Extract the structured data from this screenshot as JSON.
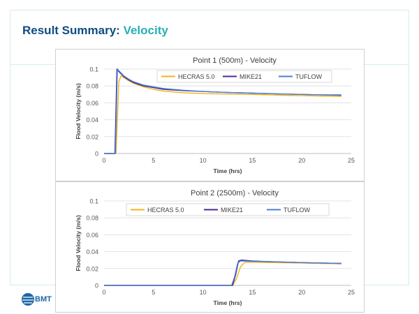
{
  "page": {
    "title_main": "Result Summary:",
    "title_accent": "Velocity",
    "logo_text": "BMT"
  },
  "colors": {
    "title": "#0f4c81",
    "accent": "#27b0b5",
    "hecras": "#f2b418",
    "mike21": "#4b2a8f",
    "tuflow": "#4a7fd4"
  },
  "chart_data": [
    {
      "type": "line",
      "title": "Point 1 (500m) - Velocity",
      "xlabel": "Time (hrs)",
      "ylabel": "Flood Velocity (m/s)",
      "xlim": [
        0,
        25
      ],
      "ylim": [
        0,
        0.1
      ],
      "x_ticks": [
        "0",
        "5",
        "10",
        "15",
        "20",
        "25"
      ],
      "y_ticks": [
        "0",
        "0.02",
        "0.04",
        "0.06",
        "0.08",
        "0.1"
      ],
      "legend": [
        "HECRAS 5.0",
        "MIKE21",
        "TUFLOW"
      ],
      "grid": true,
      "series": [
        {
          "name": "HECRAS 5.0",
          "color": "#f2b418",
          "x": [
            0,
            1.2,
            1.35,
            1.5,
            1.7,
            2,
            2.5,
            3,
            4,
            5,
            6,
            8,
            10,
            12,
            15,
            18,
            20,
            22,
            24
          ],
          "y": [
            0,
            0,
            0.04,
            0.085,
            0.092,
            0.09,
            0.086,
            0.083,
            0.079,
            0.076,
            0.074,
            0.072,
            0.071,
            0.0705,
            0.07,
            0.069,
            0.0685,
            0.068,
            0.0675
          ]
        },
        {
          "name": "MIKE21",
          "color": "#4b2a8f",
          "x": [
            0,
            1.1,
            1.2,
            1.3,
            1.5,
            2,
            2.5,
            3,
            4,
            5,
            6,
            8,
            10,
            12,
            15,
            18,
            20,
            22,
            24
          ],
          "y": [
            0,
            0,
            0.05,
            0.1,
            0.097,
            0.091,
            0.087,
            0.084,
            0.08,
            0.078,
            0.076,
            0.0745,
            0.0735,
            0.0725,
            0.0715,
            0.0705,
            0.07,
            0.0695,
            0.069
          ]
        },
        {
          "name": "TUFLOW",
          "color": "#4a7fd4",
          "x": [
            0,
            1.15,
            1.25,
            1.35,
            1.5,
            2,
            2.5,
            3,
            4,
            5,
            6,
            8,
            10,
            12,
            15,
            18,
            20,
            22,
            24
          ],
          "y": [
            0,
            0,
            0.05,
            0.1,
            0.098,
            0.092,
            0.088,
            0.085,
            0.081,
            0.079,
            0.077,
            0.075,
            0.0735,
            0.0725,
            0.0715,
            0.0705,
            0.07,
            0.0695,
            0.0695
          ]
        }
      ]
    },
    {
      "type": "line",
      "title": "Point 2 (2500m) - Velocity",
      "xlabel": "Time (hrs)",
      "ylabel": "Flood Velocity (m/s)",
      "xlim": [
        0,
        25
      ],
      "ylim": [
        0,
        0.1
      ],
      "x_ticks": [
        "0",
        "5",
        "10",
        "15",
        "20",
        "25"
      ],
      "y_ticks": [
        "0",
        "0.02",
        "0.04",
        "0.06",
        "0.08",
        "0.1"
      ],
      "legend": [
        "HECRAS 5.0",
        "MIKE21",
        "TUFLOW"
      ],
      "grid": true,
      "series": [
        {
          "name": "HECRAS 5.0",
          "color": "#f2b418",
          "x": [
            0,
            13.0,
            13.4,
            13.8,
            14.2,
            15,
            17,
            20,
            22,
            24
          ],
          "y": [
            0,
            0,
            0.008,
            0.022,
            0.027,
            0.0275,
            0.027,
            0.0265,
            0.026,
            0.0255
          ]
        },
        {
          "name": "MIKE21",
          "color": "#4b2a8f",
          "x": [
            0,
            13.0,
            13.3,
            13.6,
            13.9,
            15,
            17,
            20,
            22,
            24
          ],
          "y": [
            0,
            0,
            0.012,
            0.029,
            0.03,
            0.029,
            0.028,
            0.027,
            0.0265,
            0.026
          ]
        },
        {
          "name": "TUFLOW",
          "color": "#4a7fd4",
          "x": [
            0,
            12.9,
            13.2,
            13.5,
            13.8,
            15,
            17,
            20,
            22,
            24
          ],
          "y": [
            0,
            0,
            0.01,
            0.026,
            0.029,
            0.0285,
            0.028,
            0.027,
            0.0265,
            0.026
          ]
        }
      ]
    }
  ]
}
